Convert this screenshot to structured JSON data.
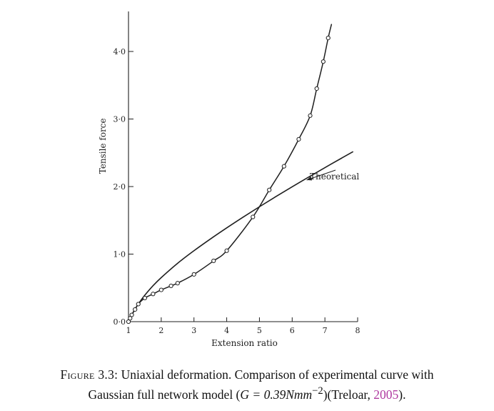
{
  "chart_data": {
    "type": "line",
    "title": "",
    "xlabel": "Extension ratio",
    "ylabel": "Tensile force",
    "xlim": [
      1,
      8
    ],
    "ylim": [
      0,
      4.5
    ],
    "x_ticks": [
      1,
      2,
      3,
      4,
      5,
      6,
      7,
      8
    ],
    "x_tick_labels": [
      "1",
      "2",
      "3",
      "4",
      "5",
      "6",
      "7",
      "8"
    ],
    "y_ticks": [
      0,
      1,
      2,
      3,
      4
    ],
    "y_tick_labels": [
      "0·0",
      "1·0",
      "2·0",
      "3·0",
      "4·0"
    ],
    "grid": false,
    "legend": "none",
    "series": [
      {
        "name": "Theoretical",
        "style": "solid-line",
        "x": [
          1.0,
          1.05,
          1.1,
          1.2,
          1.3,
          1.4,
          1.5,
          1.75,
          2.0,
          2.5,
          3.0,
          3.5,
          4.0,
          4.5,
          5.0,
          5.5,
          6.0,
          6.5,
          7.0,
          7.5,
          7.85
        ],
        "y": [
          0.0,
          0.054,
          0.102,
          0.186,
          0.262,
          0.33,
          0.393,
          0.532,
          0.652,
          0.864,
          1.05,
          1.223,
          1.388,
          1.547,
          1.701,
          1.851,
          1.997,
          2.14,
          2.28,
          2.418,
          2.514
        ]
      },
      {
        "name": "",
        "style": "line-with-open-circles",
        "x": [
          1.0,
          1.05,
          1.1,
          1.2,
          1.3,
          1.5,
          1.75,
          2.0,
          2.3,
          2.5,
          3.0,
          3.6,
          4.0,
          4.8,
          5.3,
          5.75,
          6.2,
          6.55,
          6.75,
          6.95,
          7.1,
          7.2
        ],
        "y": [
          0.0,
          0.05,
          0.1,
          0.18,
          0.26,
          0.35,
          0.41,
          0.47,
          0.53,
          0.57,
          0.7,
          0.9,
          1.05,
          1.55,
          1.95,
          2.3,
          2.7,
          3.05,
          3.45,
          3.85,
          4.2,
          4.4
        ],
        "markers_x": [
          1.0,
          1.05,
          1.1,
          1.2,
          1.3,
          1.5,
          1.75,
          2.0,
          2.3,
          2.5,
          3.0,
          3.6,
          4.0,
          4.8,
          5.3,
          5.75,
          6.2,
          6.55,
          6.75,
          6.95,
          7.1
        ],
        "markers_y": [
          0.0,
          0.05,
          0.1,
          0.18,
          0.26,
          0.35,
          0.41,
          0.47,
          0.53,
          0.57,
          0.7,
          0.9,
          1.05,
          1.55,
          1.95,
          2.3,
          2.7,
          3.05,
          3.45,
          3.85,
          4.2
        ]
      }
    ],
    "annotations": [
      {
        "text": "Theoretical",
        "points_to": {
          "x": 6.4,
          "y": 2.16
        }
      }
    ]
  },
  "caption": {
    "label": "Figure 3.3:",
    "line1_text": "Uniaxial deformation.  Comparison of experimental curve with",
    "line2_pre": "Gaussian full network model (",
    "line2_math": "G = 0.39Nmm",
    "line2_sup": "−2",
    "line2_post": ")(Treloar, ",
    "line2_year": "2005",
    "line2_end": ")."
  },
  "colors": {
    "ink": "#1f1f1f",
    "citation": "#b03aa0"
  }
}
